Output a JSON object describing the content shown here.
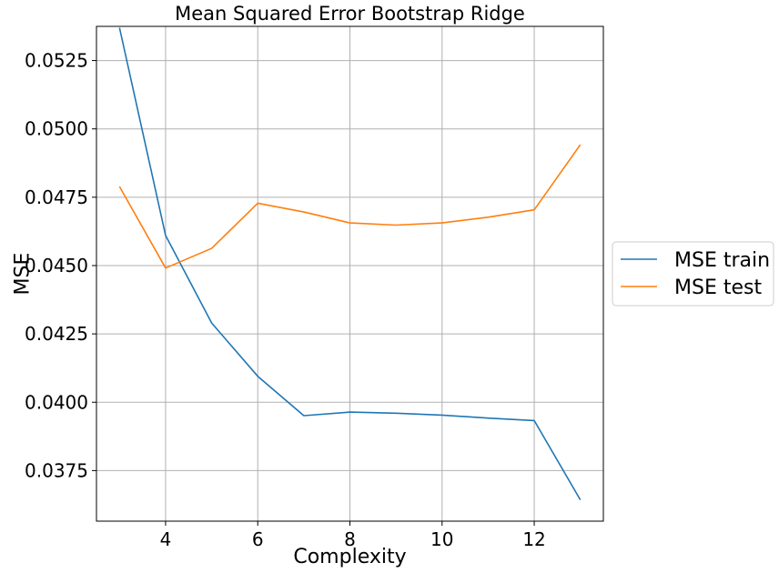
{
  "chart_data": {
    "type": "line",
    "title": "Mean Squared Error Bootstrap Ridge",
    "xlabel": "Complexity",
    "ylabel": "MSE",
    "x": [
      3,
      4,
      5,
      6,
      7,
      8,
      9,
      10,
      11,
      12,
      13
    ],
    "xlim": [
      2.5,
      13.5
    ],
    "ylim": [
      0.03565,
      0.05375
    ],
    "xticks": [
      4,
      6,
      8,
      10,
      12
    ],
    "xtick_labels": [
      "4",
      "6",
      "8",
      "10",
      "12"
    ],
    "yticks": [
      0.0375,
      0.04,
      0.0425,
      0.045,
      0.0475,
      0.05,
      0.0525
    ],
    "ytick_labels": [
      "0.0375",
      "0.0400",
      "0.0425",
      "0.0450",
      "0.0475",
      "0.0500",
      "0.0525"
    ],
    "grid": true,
    "legend_position": "outside right",
    "series": [
      {
        "name": "MSE train",
        "color": "#1f77b4",
        "values": [
          0.0537,
          0.0461,
          0.0429,
          0.04095,
          0.03951,
          0.03964,
          0.0396,
          0.03953,
          0.03942,
          0.03933,
          0.03643
        ]
      },
      {
        "name": "MSE test",
        "color": "#ff7f0e",
        "values": [
          0.04789,
          0.04491,
          0.04563,
          0.04728,
          0.04696,
          0.04656,
          0.04648,
          0.04656,
          0.04677,
          0.04704,
          0.04942
        ]
      }
    ]
  }
}
